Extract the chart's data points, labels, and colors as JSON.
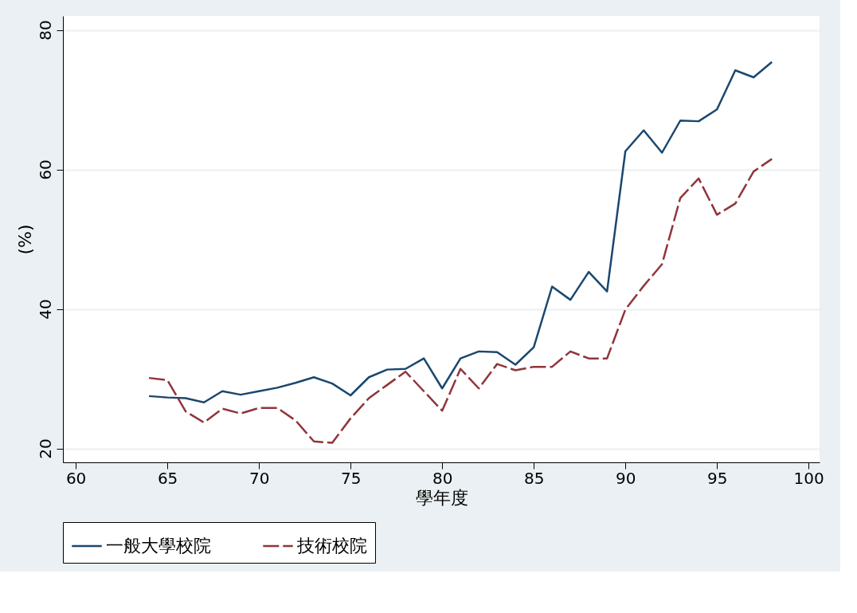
{
  "chart_data": {
    "type": "line",
    "xlabel": "學年度",
    "ylabel": "(%)",
    "xlim": [
      59.3,
      100.6
    ],
    "xticks": [
      60,
      65,
      70,
      75,
      80,
      85,
      90,
      95,
      100
    ],
    "ylim": [
      18,
      82
    ],
    "yticks": [
      20,
      40,
      60,
      80
    ],
    "grid": "y",
    "legend": "bottom",
    "x": [
      64,
      65,
      66,
      67,
      68,
      69,
      70,
      71,
      72,
      73,
      74,
      75,
      76,
      77,
      78,
      79,
      80,
      81,
      82,
      83,
      84,
      85,
      86,
      87,
      88,
      89,
      90,
      91,
      92,
      93,
      94,
      95,
      96,
      97,
      98
    ],
    "series": [
      {
        "name": "一般大學校院",
        "color": "#1a476f",
        "line_style": "solid",
        "values": [
          27.5,
          27.3,
          27.2,
          26.6,
          28.2,
          27.7,
          28.2,
          28.7,
          29.4,
          30.2,
          29.3,
          27.6,
          30.2,
          31.3,
          31.4,
          32.9,
          28.6,
          32.9,
          33.9,
          33.8,
          32.0,
          34.5,
          43.2,
          41.3,
          45.3,
          42.5,
          62.6,
          65.6,
          62.4,
          67.0,
          66.9,
          68.6,
          74.2,
          73.2,
          75.4
        ]
      },
      {
        "name": "技術校院",
        "color": "#90353b",
        "line_style": "dashed",
        "values": [
          30.1,
          29.8,
          25.3,
          23.7,
          25.7,
          25.0,
          25.8,
          25.8,
          24.0,
          21.0,
          20.8,
          24.3,
          27.2,
          29.1,
          31.0,
          28.2,
          25.4,
          31.4,
          28.6,
          32.1,
          31.2,
          31.7,
          31.7,
          33.9,
          32.9,
          32.9,
          39.9,
          43.3,
          46.4,
          55.9,
          58.7,
          53.5,
          55.1,
          59.7,
          61.5
        ]
      }
    ]
  }
}
